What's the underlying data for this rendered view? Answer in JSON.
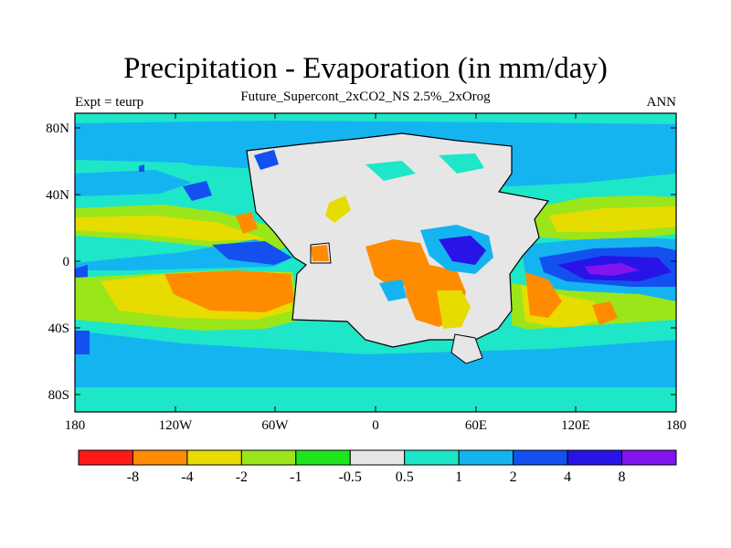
{
  "figure": {
    "title": "Precipitation - Evaporation (in mm/day)",
    "subtitle": "Future_Supercont_2xCO2_NS 2.5%_2xOrog",
    "left_label": "Expt = teurp",
    "right_label": "ANN"
  },
  "map": {
    "y_ticks": [
      "80N",
      "40N",
      "0",
      "40S",
      "80S"
    ],
    "x_ticks": [
      "180",
      "120W",
      "60W",
      "0",
      "60E",
      "120E",
      "180"
    ]
  },
  "colorbar": {
    "labels": [
      "-8",
      "-4",
      "-2",
      "-1",
      "-0.5",
      "0.5",
      "1",
      "2",
      "4",
      "8"
    ],
    "colors": [
      "#ff1a1a",
      "#ff8c00",
      "#e6dc00",
      "#9ae61a",
      "#1ee61e",
      "#e6e6e6",
      "#1ee6c8",
      "#14b4f0",
      "#1450f0",
      "#2814e6",
      "#8214f0"
    ]
  },
  "palette": {
    "land": "#e6e6e6",
    "ocean_teal": "#1ee6c8",
    "ocean_light_blue": "#14b4f0",
    "blue": "#1450f0",
    "dark_blue": "#2814e6",
    "purple": "#8214f0",
    "orange": "#ff8c00",
    "yellow": "#e6dc00",
    "light_green": "#9ae61a",
    "green": "#1ee61e"
  }
}
